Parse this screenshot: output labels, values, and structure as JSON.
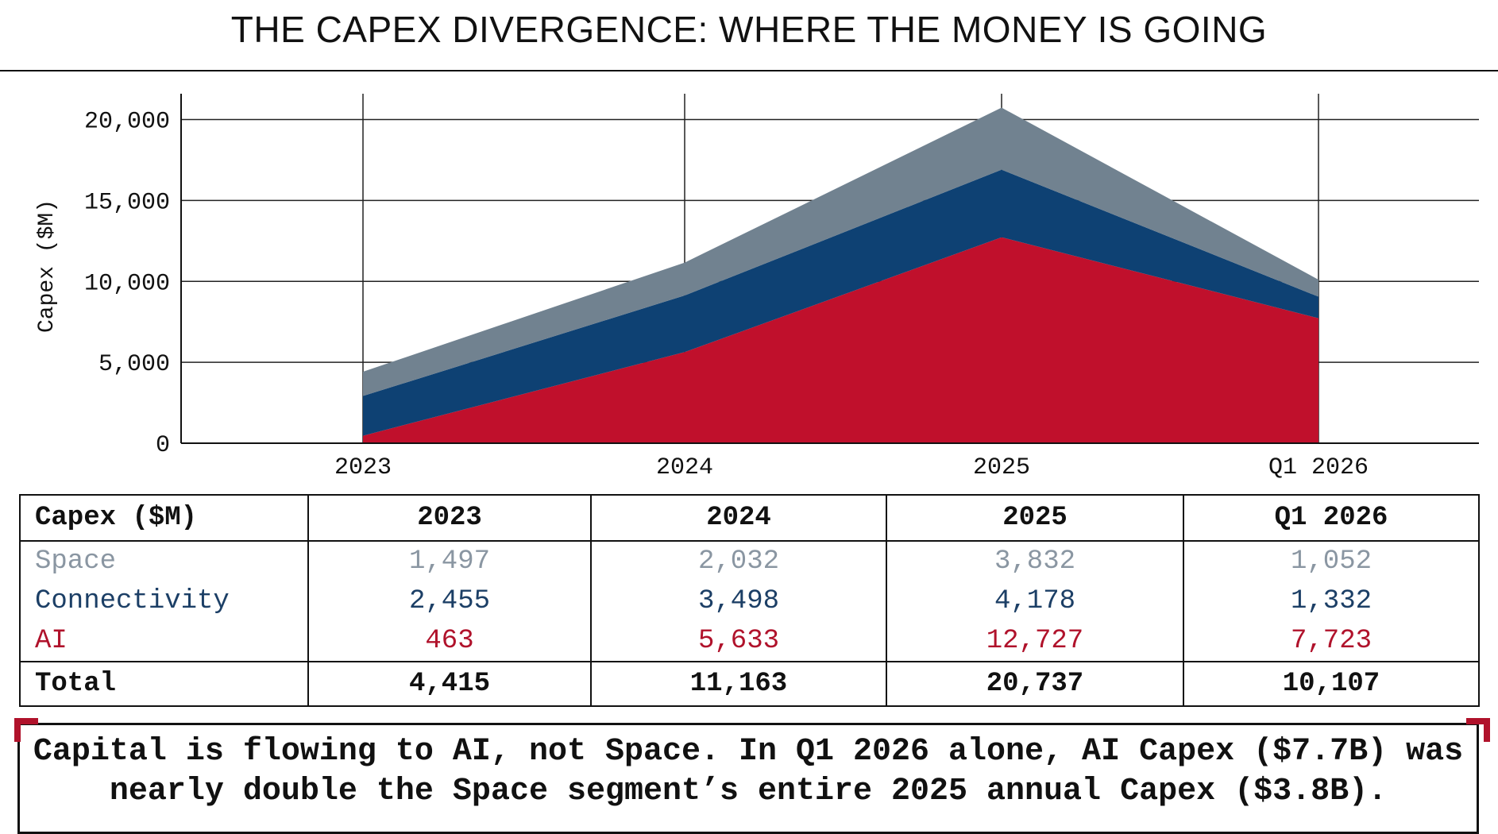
{
  "title": "THE CAPEX DIVERGENCE: WHERE THE MONEY IS GOING",
  "chart_data": {
    "type": "area",
    "stacked": true,
    "title": "THE CAPEX DIVERGENCE: WHERE THE MONEY IS GOING",
    "xlabel": "",
    "ylabel": "Capex ($M)",
    "categories": [
      "2023",
      "2024",
      "2025",
      "Q1 2026"
    ],
    "ylim": [
      0,
      21500
    ],
    "yticks": [
      "0",
      "5,000",
      "10,000",
      "15,000",
      "20,000"
    ],
    "ytick_values": [
      0,
      5000,
      10000,
      15000,
      20000
    ],
    "grid": true,
    "series": [
      {
        "name": "AI",
        "values": [
          463,
          5633,
          12727,
          7723
        ],
        "color": "#c0102c"
      },
      {
        "name": "Connectivity",
        "values": [
          2455,
          3498,
          4178,
          1332
        ],
        "color": "#0e4173"
      },
      {
        "name": "Space",
        "values": [
          1497,
          2032,
          3832,
          1052
        ],
        "color": "#718290"
      }
    ]
  },
  "table": {
    "header": [
      "Capex ($M)",
      "2023",
      "2024",
      "2025",
      "Q1 2026"
    ],
    "rows": [
      {
        "label": "Space",
        "values": [
          "1,497",
          "2,032",
          "3,832",
          "1,052"
        ],
        "color": "#8a96a2"
      },
      {
        "label": "Connectivity",
        "values": [
          "2,455",
          "3,498",
          "4,178",
          "1,332"
        ],
        "color": "#1c3f66"
      },
      {
        "label": "AI",
        "values": [
          "463",
          "5,633",
          "12,727",
          "7,723"
        ],
        "color": "#b0122b"
      }
    ],
    "total": {
      "label": "Total",
      "values": [
        "4,415",
        "11,163",
        "20,737",
        "10,107"
      ]
    }
  },
  "callout": {
    "line1": "Capital is flowing to AI, not Space. In Q1 2026 alone, AI Capex ($7.7B) was",
    "line2": "nearly double the Space segment’s entire 2025 annual Capex ($3.8B)."
  }
}
